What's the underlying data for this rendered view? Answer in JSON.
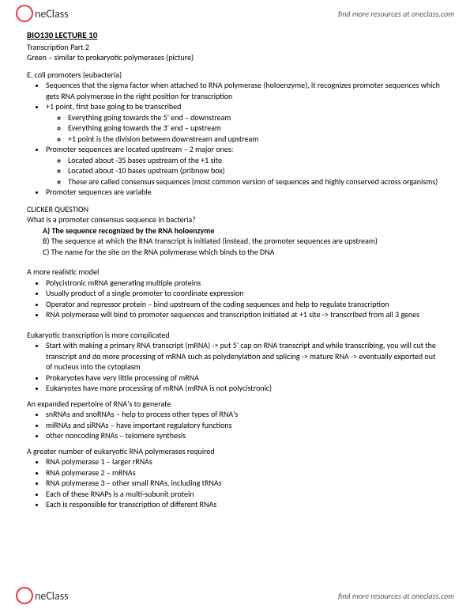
{
  "brand": {
    "name": "neClass",
    "tagline": "find more resources at oneclass.com"
  },
  "doc": {
    "title": "BIO130 LECTURE 10",
    "subtitle": "Transcription Part 2",
    "green_note": "Green – similar to prokaryotic polymerases (picture)"
  },
  "ecoli": {
    "heading": "E. coli promoters (eubacteria)",
    "b1": "Sequences that the sigma factor when attached to RNA polymerase (holoenzyme), it recognizes promoter sequences which gets RNA polymerase in the right position for transcription",
    "b2": "+1 point, first base going to be transcribed",
    "b2a": "Everything going towards the 5' end – downstream",
    "b2b": "Everything going towards the 3' end – upstream",
    "b2c": "+1 point is the division between downstream and upstream",
    "b3": "Promoter sequences are located upstream – 2 major ones:",
    "b3a": "Located about -35 bases upstream of the +1 site",
    "b3b": "Located about -10 bases upstream (pribnow box)",
    "b3c": "These are called consensus sequences (most common version of sequences and highly conserved across organisms)",
    "b4": "Promoter sequences are variable"
  },
  "clicker": {
    "heading": "CLICKER QUESTION",
    "question": "What is a promoter consensus sequence in bacteria?",
    "optA_label": "A)",
    "optA": "The sequence recognized by the RNA holoenzyme",
    "optB_label": "B)",
    "optB": "The sequence at which the RNA transcript is initiated (instead, the promoter sequences are upstream)",
    "optC_label": "C)",
    "optC": "The name for the site on the RNA polymerase which binds to the DNA"
  },
  "realistic": {
    "heading": "A more realistic model",
    "b1": "Polycistronic mRNA generating multiple proteins",
    "b2": "Usually product of a single promoter to coordinate expression",
    "b3": "Operator and repressor protein – bind upstream of the coding sequences and help to regulate transcription",
    "b4": "RNA polymerase will bind to promoter sequences and transcription initiated at +1 site -> transcribed from all 3 genes"
  },
  "euk": {
    "heading": "Eukaryotic transcription is more complicated",
    "b1": "Start with making a primary RNA transcript (mRNA) -> put 5' cap on RNA transcript and while transcribing, you will cut the transcript and do more processing of mRNA such as polydenylation and splicing -> mature RNA -> eventually exported out of nucleus into the cytoplasm",
    "b2": "Prokaryotes have very little processing of mRNA",
    "b3": "Eukaryotes have more processing of mRNA (mRNA is not polycistronic)"
  },
  "expanded": {
    "heading": "An expanded repertoire of RNA's to generate",
    "b1": "snRNAs and snoRNAs – help to process other types of RNA's",
    "b2": "miRNAs and siRNAs – have important regulatory functions",
    "b3": "other noncoding RNAs – telomere synthesis"
  },
  "greater": {
    "heading": "A greater number of eukaryotic RNA polymerases required",
    "b1": "RNA polymerase 1 – larger rRNAs",
    "b2": "RNA polymerase 2 – mRNAs",
    "b3": "RNA polymerase 3 – other small RNAs, including tRNAs",
    "b4": "Each of these RNAPs is a multi-subunit protein",
    "b5": "Each is responsible for transcription of different RNAs"
  }
}
